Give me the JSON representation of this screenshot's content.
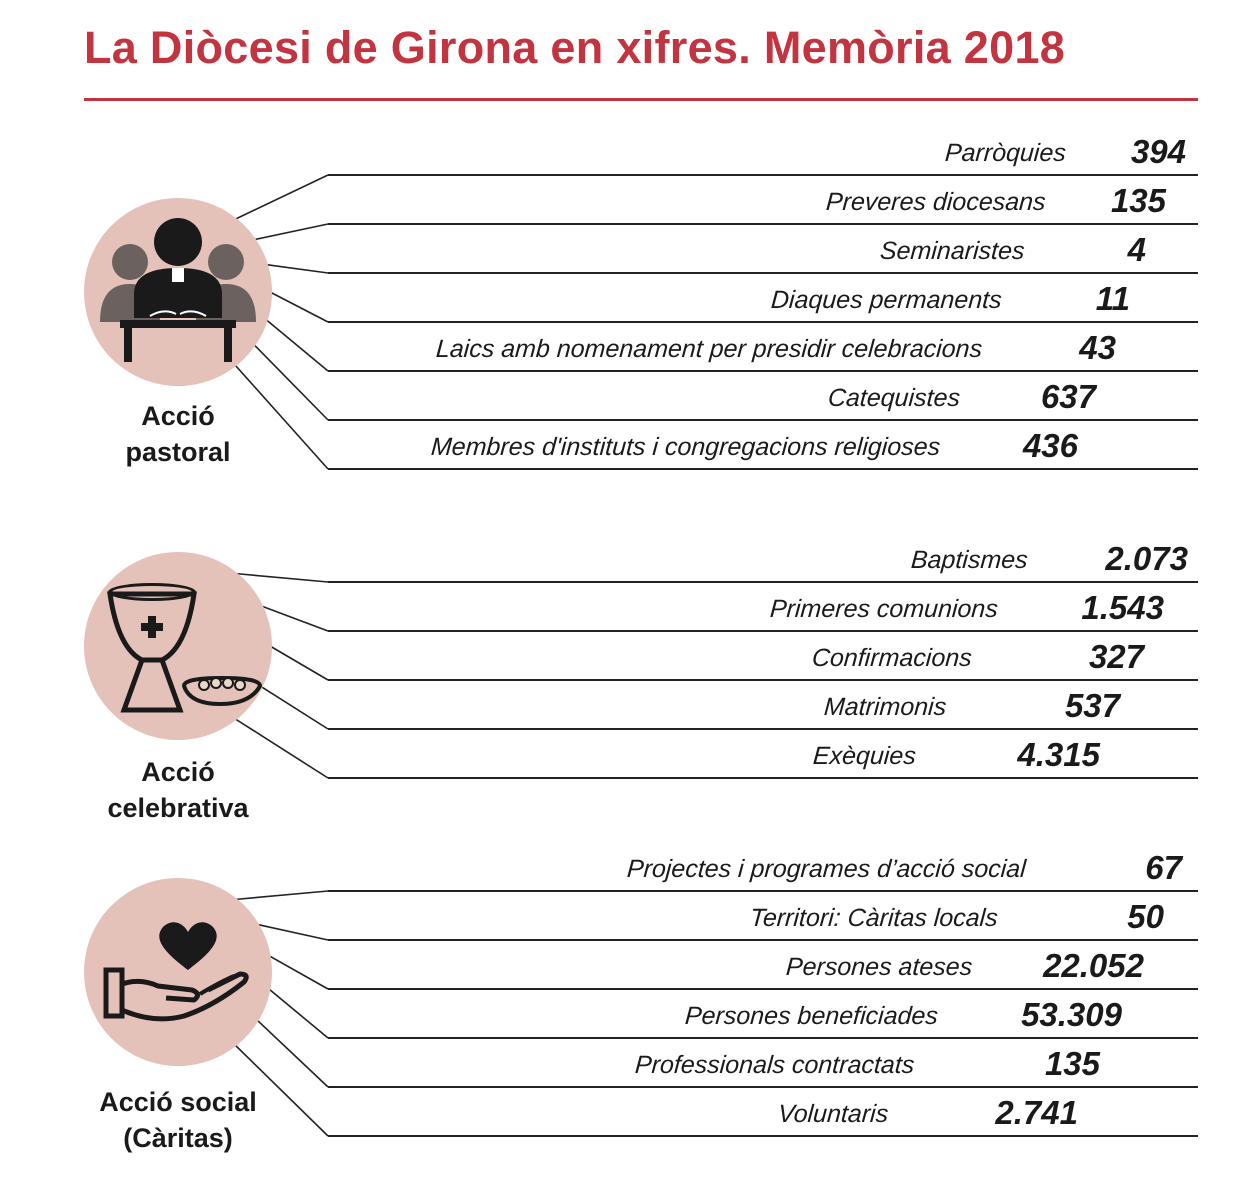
{
  "title": "La Diòcesi de Girona en xifres. Memòria 2018",
  "colors": {
    "title": "#c2343f",
    "circle": "#e4c2b9",
    "icon_dark": "#1a1a1a",
    "icon_gray": "#6b6260"
  },
  "sections": [
    {
      "icon": "clergy-at-altar-icon",
      "label_line1": "Acció",
      "label_line2": "pastoral",
      "rows": [
        {
          "label": "Parròquies",
          "value": "394"
        },
        {
          "label": "Preveres diocesans",
          "value": "135"
        },
        {
          "label": "Seminaristes",
          "value": "4"
        },
        {
          "label": "Diaques permanents",
          "value": "11"
        },
        {
          "label": "Laics amb nomenament per presidir celebracions",
          "value": "43"
        },
        {
          "label": "Catequistes",
          "value": "637"
        },
        {
          "label": "Membres d'instituts i congregacions religioses",
          "value": "436"
        }
      ]
    },
    {
      "icon": "chalice-and-paten-icon",
      "label_line1": "Acció",
      "label_line2": "celebrativa",
      "rows": [
        {
          "label": "Baptismes",
          "value": "2.073"
        },
        {
          "label": "Primeres comunions",
          "value": "1.543"
        },
        {
          "label": "Confirmacions",
          "value": "327"
        },
        {
          "label": "Matrimonis",
          "value": "537"
        },
        {
          "label": "Exèquies",
          "value": "4.315"
        }
      ]
    },
    {
      "icon": "heart-in-hand-icon",
      "label_line1": "Acció social",
      "label_line2": "(Càritas)",
      "rows": [
        {
          "label": "Projectes i programes d’acció social",
          "value": "67"
        },
        {
          "label": "Territori: Càritas locals",
          "value": "50"
        },
        {
          "label": "Persones ateses",
          "value": "22.052"
        },
        {
          "label": "Persones beneficiades",
          "value": "53.309"
        },
        {
          "label": "Professionals contractats",
          "value": "135"
        },
        {
          "label": "Voluntaris",
          "value": "2.741"
        }
      ]
    }
  ]
}
